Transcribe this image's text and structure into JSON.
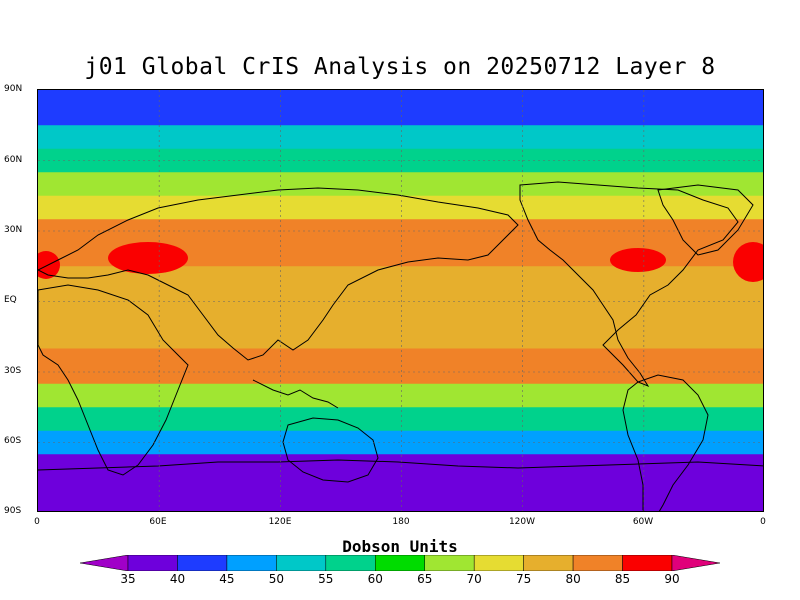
{
  "chart_data": {
    "type": "heatmap",
    "title": "j01 Global CrIS Analysis on 20250712 Layer 8",
    "colorbar_label": "Dobson Units",
    "lat_ticks": [
      "90N",
      "60N",
      "30N",
      "EQ",
      "30S",
      "60S",
      "90S"
    ],
    "lon_ticks": [
      "0",
      "60E",
      "120E",
      "180",
      "120W",
      "60W",
      "0"
    ],
    "levels": [
      35,
      40,
      45,
      50,
      55,
      60,
      65,
      70,
      75,
      80,
      85,
      90
    ],
    "colors": [
      "#a000c8",
      "#6e00dc",
      "#1e3cff",
      "#00a0ff",
      "#00c8c8",
      "#00d28c",
      "#00dc00",
      "#a0e632",
      "#e6dc32",
      "#e6af2d",
      "#f08228",
      "#fa0000",
      "#e0007a"
    ],
    "latitude_band_values": [
      {
        "lat": "90N-75N",
        "value": 40
      },
      {
        "lat": "75N-65N",
        "value": 50
      },
      {
        "lat": "65N-55N",
        "value": 57
      },
      {
        "lat": "55N-45N",
        "value": 65
      },
      {
        "lat": "45N-35N",
        "value": 72
      },
      {
        "lat": "35N-15N",
        "value": 80
      },
      {
        "lat": "15N-EQ",
        "value": 77
      },
      {
        "lat": "EQ-20S",
        "value": 76
      },
      {
        "lat": "20S-35S",
        "value": 80
      },
      {
        "lat": "35S-45S",
        "value": 68
      },
      {
        "lat": "45S-55S",
        "value": 58
      },
      {
        "lat": "55S-65S",
        "value": 48
      },
      {
        "lat": "65S-90S",
        "value": 38
      }
    ],
    "maxima": [
      {
        "region": "North Africa / Arabia",
        "value": 87
      },
      {
        "region": "Central Atlantic / Caribbean",
        "value": 87
      }
    ],
    "grid": true
  }
}
